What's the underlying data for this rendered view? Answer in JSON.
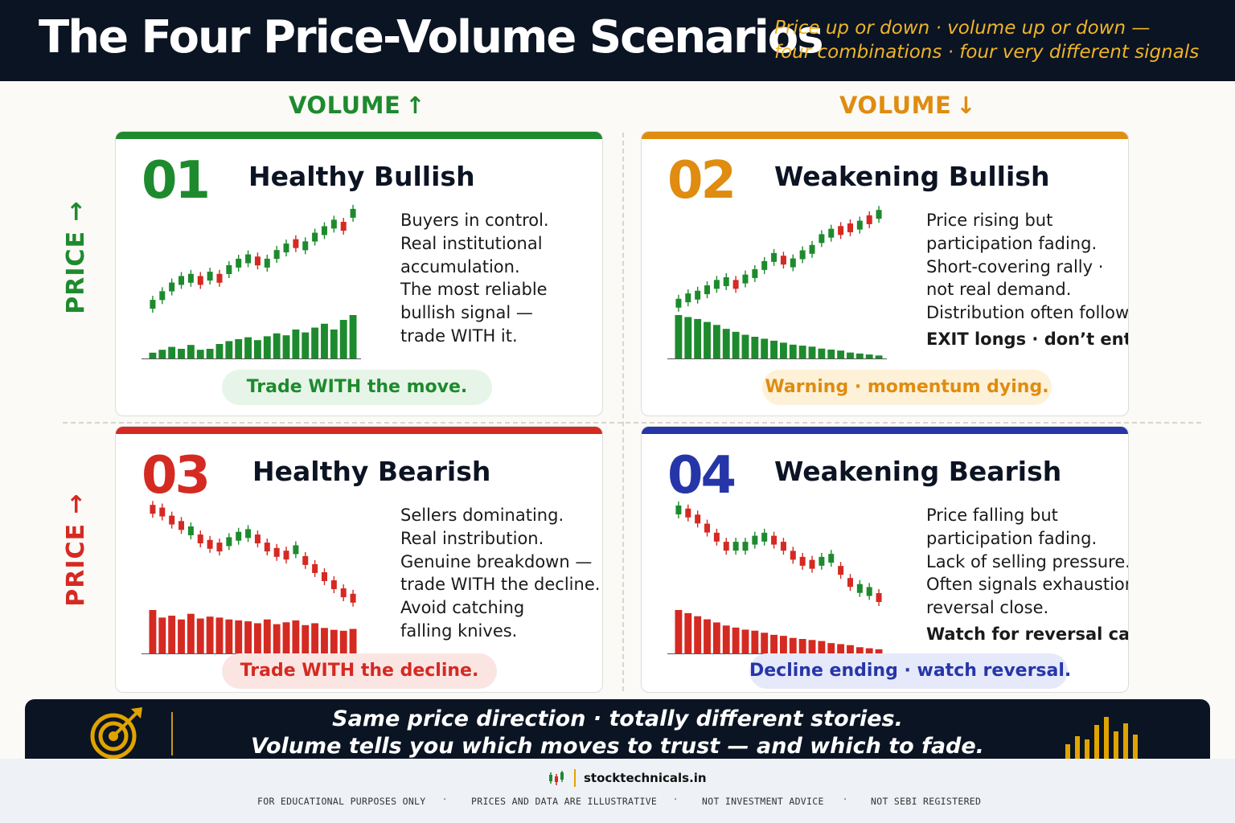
{
  "header": {
    "title": "The Four Price-Volume Scenarios",
    "subtitle_line1": "Price up or down · volume up or down —",
    "subtitle_line2": "four combinations · four very different signals"
  },
  "axes": {
    "volume_up": "VOLUME",
    "volume_down": "VOLUME",
    "price_up": "PRICE",
    "price_down": "PRICE",
    "arrow_up": "↑",
    "arrow_down": "↓",
    "arrow_price_up": "→",
    "arrow_price_down": "→"
  },
  "colors": {
    "green": "#1e8a2e",
    "orange": "#df8c10",
    "red": "#d42a22",
    "blue": "#2636a8",
    "green_pill_bg": "#e6f5e8",
    "orange_pill_bg": "#fdf1d8",
    "red_pill_bg": "#fbe5e3",
    "blue_pill_bg": "#e6e9f9"
  },
  "cards": [
    {
      "num": "01",
      "title": "Healthy Bullish",
      "desc": [
        "Buyers in control.",
        "Real institutional",
        "accumulation.",
        "The most reliable",
        "bullish signal —",
        "trade WITH it."
      ],
      "strong": "",
      "pill": "Trade WITH the move."
    },
    {
      "num": "02",
      "title": "Weakening Bullish",
      "desc": [
        "Price rising but",
        "participation fading.",
        "Short-covering rally ·",
        "not real demand.",
        "Distribution often follows."
      ],
      "strong": "EXIT longs · don’t enter.",
      "pill": "Warning · momentum dying."
    },
    {
      "num": "03",
      "title": "Healthy Bearish",
      "desc": [
        "Sellers dominating.",
        "Real instribution.",
        "Genuine breakdown —",
        "trade WITH the decline.",
        "Avoid catching",
        "falling knives."
      ],
      "strong": "",
      "pill": "Trade WITH the decline."
    },
    {
      "num": "04",
      "title": "Weakening Bearish",
      "desc": [
        "Price falling but",
        "participation fading.",
        "Lack of selling pressure.",
        "Often signals exhaustion ·",
        "reversal close."
      ],
      "strong": "Watch for reversal candle.",
      "pill": "Decline ending · watch reversal."
    }
  ],
  "chart_data": [
    {
      "type": "candlestick_volume",
      "scenario": "01",
      "price": [
        10,
        14,
        18,
        21,
        22,
        21,
        23,
        22,
        26,
        29,
        31,
        30,
        29,
        33,
        36,
        38,
        37,
        41,
        44,
        47,
        46,
        52
      ],
      "up": [
        1,
        1,
        1,
        1,
        1,
        0,
        1,
        0,
        1,
        1,
        1,
        0,
        1,
        1,
        1,
        0,
        1,
        1,
        1,
        1,
        0,
        1
      ],
      "volume": [
        6,
        9,
        12,
        10,
        14,
        9,
        10,
        15,
        18,
        20,
        22,
        19,
        23,
        26,
        24,
        30,
        27,
        32,
        36,
        30,
        40,
        45
      ]
    },
    {
      "type": "candlestick_volume",
      "scenario": "02",
      "price": [
        10,
        12,
        13,
        15,
        17,
        18,
        17,
        19,
        21,
        24,
        27,
        26,
        25,
        28,
        30,
        34,
        36,
        37,
        38,
        39,
        41,
        43
      ],
      "up": [
        1,
        1,
        1,
        1,
        1,
        1,
        0,
        1,
        1,
        1,
        1,
        0,
        1,
        1,
        1,
        1,
        1,
        0,
        0,
        1,
        0,
        1
      ],
      "volume": [
        44,
        42,
        40,
        37,
        34,
        30,
        27,
        24,
        22,
        20,
        18,
        16,
        14,
        13,
        12,
        10,
        9,
        8,
        6,
        5,
        4,
        3
      ]
    },
    {
      "type": "candlestick_volume",
      "scenario": "03",
      "price": [
        47,
        46,
        43,
        41,
        39,
        36,
        34,
        33,
        35,
        37,
        38,
        36,
        33,
        31,
        30,
        32,
        28,
        25,
        22,
        19,
        16,
        14
      ],
      "up": [
        0,
        0,
        0,
        0,
        1,
        0,
        0,
        0,
        1,
        1,
        1,
        0,
        0,
        0,
        0,
        1,
        0,
        0,
        0,
        0,
        0,
        0
      ],
      "volume": [
        46,
        38,
        40,
        36,
        42,
        37,
        39,
        38,
        36,
        35,
        34,
        32,
        36,
        31,
        33,
        35,
        30,
        32,
        27,
        25,
        24,
        26
      ]
    },
    {
      "type": "candlestick_volume",
      "scenario": "04",
      "price": [
        47,
        46,
        44,
        41,
        38,
        35,
        35,
        35,
        37,
        38,
        37,
        35,
        32,
        30,
        29,
        30,
        31,
        27,
        23,
        21,
        20,
        18
      ],
      "up": [
        1,
        0,
        0,
        0,
        0,
        0,
        1,
        1,
        1,
        1,
        0,
        0,
        0,
        0,
        0,
        1,
        1,
        0,
        0,
        1,
        1,
        0
      ],
      "volume": [
        42,
        39,
        36,
        33,
        30,
        27,
        25,
        23,
        22,
        20,
        18,
        17,
        15,
        14,
        13,
        12,
        10,
        9,
        8,
        6,
        5,
        4
      ]
    }
  ],
  "banner": {
    "line1": "Same price direction · totally different stories.",
    "line2": "Volume tells you which moves to trust — and which to fade."
  },
  "footer": {
    "brand": "stocktechnicals.in",
    "d1": "FOR EDUCATIONAL PURPOSES ONLY",
    "d2": "PRICES AND DATA ARE ILLUSTRATIVE",
    "d3": "NOT INVESTMENT ADVICE",
    "d4": "NOT SEBI REGISTERED",
    "sep": "·"
  }
}
